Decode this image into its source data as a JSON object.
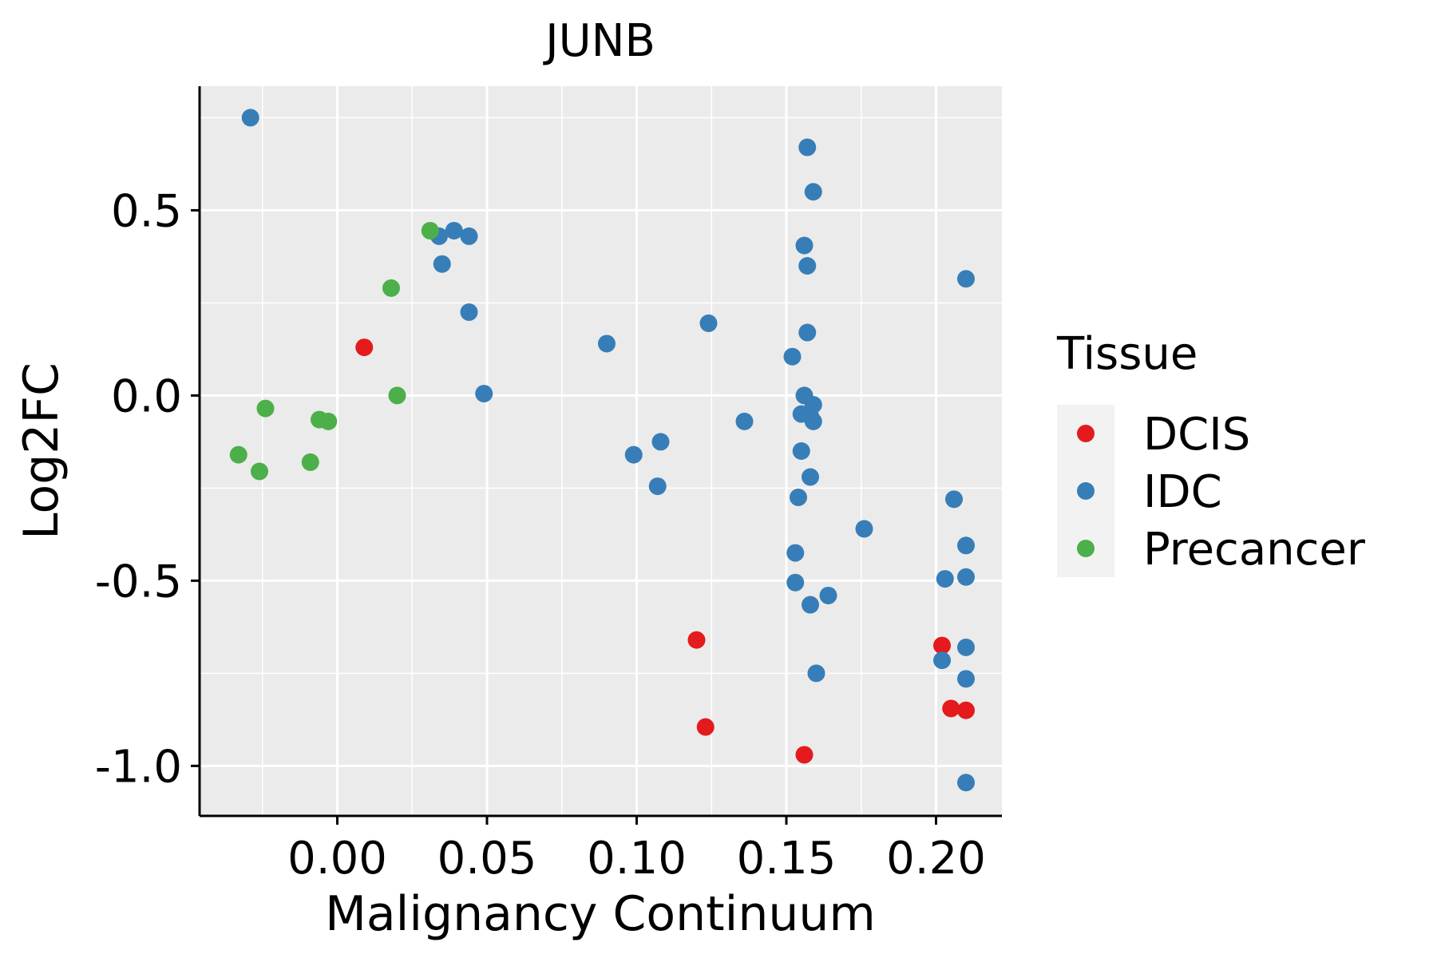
{
  "chart_data": {
    "type": "scatter",
    "title": "JUNB",
    "xlabel": "Malignancy Continuum",
    "ylabel": "Log2FC",
    "xlim": [
      -0.046,
      0.222
    ],
    "ylim": [
      -1.135,
      0.835
    ],
    "x_ticks": [
      0.0,
      0.05,
      0.1,
      0.15,
      0.2
    ],
    "x_tick_labels": [
      "0.00",
      "0.05",
      "0.10",
      "0.15",
      "0.20"
    ],
    "y_ticks": [
      -1.0,
      -0.5,
      0.0,
      0.5
    ],
    "y_tick_labels": [
      "-1.0",
      "-0.5",
      "0.0",
      "0.5"
    ],
    "grid": true,
    "legend": {
      "title": "Tissue",
      "placement": "right",
      "entries": [
        {
          "label": "DCIS",
          "color": "#E41A1C"
        },
        {
          "label": "IDC",
          "color": "#377EB8"
        },
        {
          "label": "Precancer",
          "color": "#4DAF4A"
        }
      ]
    },
    "series": [
      {
        "name": "DCIS",
        "color": "#E41A1C",
        "points": [
          {
            "x": 0.009,
            "y": 0.13
          },
          {
            "x": 0.12,
            "y": -0.66
          },
          {
            "x": 0.123,
            "y": -0.895
          },
          {
            "x": 0.156,
            "y": -0.97
          },
          {
            "x": 0.202,
            "y": -0.675
          },
          {
            "x": 0.205,
            "y": -0.845
          },
          {
            "x": 0.21,
            "y": -0.85
          }
        ]
      },
      {
        "name": "IDC",
        "color": "#377EB8",
        "points": [
          {
            "x": -0.029,
            "y": 0.75
          },
          {
            "x": 0.034,
            "y": 0.43
          },
          {
            "x": 0.039,
            "y": 0.445
          },
          {
            "x": 0.044,
            "y": 0.43
          },
          {
            "x": 0.035,
            "y": 0.355
          },
          {
            "x": 0.044,
            "y": 0.225
          },
          {
            "x": 0.049,
            "y": 0.005
          },
          {
            "x": 0.09,
            "y": 0.14
          },
          {
            "x": 0.099,
            "y": -0.16
          },
          {
            "x": 0.108,
            "y": -0.125
          },
          {
            "x": 0.107,
            "y": -0.245
          },
          {
            "x": 0.124,
            "y": 0.195
          },
          {
            "x": 0.136,
            "y": -0.07
          },
          {
            "x": 0.157,
            "y": 0.67
          },
          {
            "x": 0.159,
            "y": 0.55
          },
          {
            "x": 0.156,
            "y": 0.405
          },
          {
            "x": 0.157,
            "y": 0.35
          },
          {
            "x": 0.157,
            "y": 0.17
          },
          {
            "x": 0.152,
            "y": 0.105
          },
          {
            "x": 0.156,
            "y": 0.0
          },
          {
            "x": 0.159,
            "y": -0.025
          },
          {
            "x": 0.155,
            "y": -0.05
          },
          {
            "x": 0.158,
            "y": -0.055
          },
          {
            "x": 0.159,
            "y": -0.07
          },
          {
            "x": 0.155,
            "y": -0.15
          },
          {
            "x": 0.158,
            "y": -0.22
          },
          {
            "x": 0.154,
            "y": -0.275
          },
          {
            "x": 0.176,
            "y": -0.36
          },
          {
            "x": 0.153,
            "y": -0.425
          },
          {
            "x": 0.153,
            "y": -0.505
          },
          {
            "x": 0.158,
            "y": -0.565
          },
          {
            "x": 0.164,
            "y": -0.54
          },
          {
            "x": 0.16,
            "y": -0.75
          },
          {
            "x": 0.206,
            "y": -0.28
          },
          {
            "x": 0.21,
            "y": 0.315
          },
          {
            "x": 0.21,
            "y": -0.405
          },
          {
            "x": 0.21,
            "y": -0.49
          },
          {
            "x": 0.203,
            "y": -0.495
          },
          {
            "x": 0.21,
            "y": -0.68
          },
          {
            "x": 0.202,
            "y": -0.715
          },
          {
            "x": 0.21,
            "y": -0.765
          },
          {
            "x": 0.21,
            "y": -1.045
          }
        ]
      },
      {
        "name": "Precancer",
        "color": "#4DAF4A",
        "points": [
          {
            "x": -0.033,
            "y": -0.16
          },
          {
            "x": -0.024,
            "y": -0.035
          },
          {
            "x": -0.026,
            "y": -0.205
          },
          {
            "x": -0.006,
            "y": -0.065
          },
          {
            "x": -0.003,
            "y": -0.07
          },
          {
            "x": -0.009,
            "y": -0.18
          },
          {
            "x": 0.018,
            "y": 0.29
          },
          {
            "x": 0.02,
            "y": 0.0
          },
          {
            "x": 0.031,
            "y": 0.445
          }
        ]
      }
    ]
  }
}
